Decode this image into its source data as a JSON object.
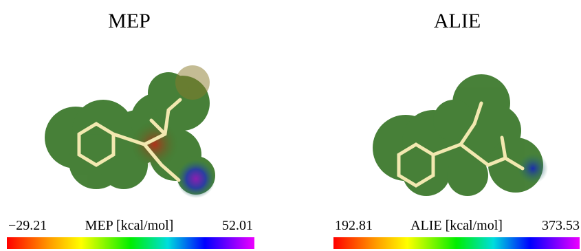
{
  "panels": [
    {
      "title": "MEP",
      "min_label": "−29.21",
      "scale_label": "MEP [kcal/mol]",
      "max_label": "52.01"
    },
    {
      "title": "ALIE",
      "min_label": "192.81",
      "scale_label": "ALIE [kcal/mol]",
      "max_label": "373.53"
    }
  ]
}
